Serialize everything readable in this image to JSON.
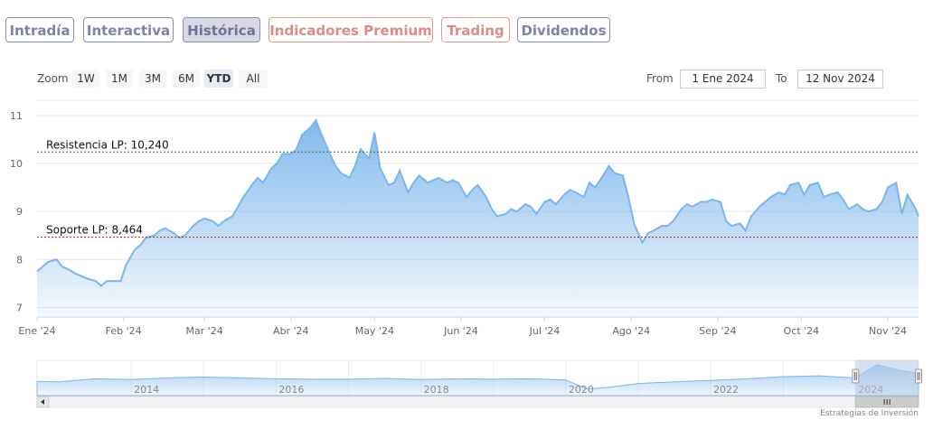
{
  "tabs": [
    {
      "label": "Intradía",
      "style": "normal"
    },
    {
      "label": "Interactiva",
      "style": "normal"
    },
    {
      "label": "Histórica",
      "style": "active"
    },
    {
      "label": "Indicadores Premium",
      "style": "premium"
    },
    {
      "label": "Trading",
      "style": "premium"
    },
    {
      "label": "Dividendos",
      "style": "normal"
    }
  ],
  "zoom": {
    "label": "Zoom",
    "buttons": [
      {
        "label": "1W",
        "selected": false
      },
      {
        "label": "1M",
        "selected": false
      },
      {
        "label": "3M",
        "selected": false
      },
      {
        "label": "6M",
        "selected": false
      },
      {
        "label": "YTD",
        "selected": true
      },
      {
        "label": "All",
        "selected": false
      }
    ]
  },
  "range": {
    "from_label": "From",
    "from_value": "1 Ene 2024",
    "to_label": "To",
    "to_value": "12 Nov 2024"
  },
  "credit": "Estrategias de Inversión",
  "colors": {
    "series_line": "#7cb5ec",
    "resistance": "#2e7d32",
    "support": "#b71c1c",
    "navigator_mask": "#b3c7e6"
  },
  "chart_data": {
    "type": "area",
    "title": "",
    "xlabel": "",
    "ylabel": "",
    "ylim": [
      6.8,
      11.3
    ],
    "grid": true,
    "yticks": [
      7,
      8,
      9,
      10,
      11
    ],
    "x_tick_labels": [
      "Ene '24",
      "Feb '24",
      "Mar '24",
      "Abr '24",
      "May '24",
      "Jun '24",
      "Jul '24",
      "Ago '24",
      "Sep '24",
      "Oct '24",
      "Nov '24"
    ],
    "x_tick_dates": [
      "2024-01-01",
      "2024-02-01",
      "2024-03-01",
      "2024-04-01",
      "2024-05-01",
      "2024-06-01",
      "2024-07-01",
      "2024-08-01",
      "2024-09-01",
      "2024-10-01",
      "2024-11-01"
    ],
    "x_range": [
      "2024-01-01",
      "2024-11-12"
    ],
    "series": [
      {
        "x": [
          "2024-01-01",
          "2024-01-03",
          "2024-01-05",
          "2024-01-08",
          "2024-01-10",
          "2024-01-12",
          "2024-01-15",
          "2024-01-17",
          "2024-01-19",
          "2024-01-22",
          "2024-01-24",
          "2024-01-26",
          "2024-01-29",
          "2024-01-31",
          "2024-02-02",
          "2024-02-05",
          "2024-02-07",
          "2024-02-09",
          "2024-02-12",
          "2024-02-14",
          "2024-02-16",
          "2024-02-19",
          "2024-02-21",
          "2024-02-23",
          "2024-02-26",
          "2024-02-28",
          "2024-03-01",
          "2024-03-04",
          "2024-03-06",
          "2024-03-08",
          "2024-03-11",
          "2024-03-13",
          "2024-03-15",
          "2024-03-18",
          "2024-03-20",
          "2024-03-22",
          "2024-03-25",
          "2024-03-27",
          "2024-03-29",
          "2024-04-01",
          "2024-04-03",
          "2024-04-05",
          "2024-04-08",
          "2024-04-10",
          "2024-04-12",
          "2024-04-15",
          "2024-04-17",
          "2024-04-19",
          "2024-04-22",
          "2024-04-24",
          "2024-04-26",
          "2024-04-29",
          "2024-05-01",
          "2024-05-03",
          "2024-05-06",
          "2024-05-08",
          "2024-05-10",
          "2024-05-13",
          "2024-05-15",
          "2024-05-17",
          "2024-05-20",
          "2024-05-22",
          "2024-05-24",
          "2024-05-27",
          "2024-05-29",
          "2024-05-31",
          "2024-06-03",
          "2024-06-05",
          "2024-06-07",
          "2024-06-10",
          "2024-06-12",
          "2024-06-14",
          "2024-06-17",
          "2024-06-19",
          "2024-06-21",
          "2024-06-24",
          "2024-06-26",
          "2024-06-28",
          "2024-07-01",
          "2024-07-03",
          "2024-07-05",
          "2024-07-08",
          "2024-07-10",
          "2024-07-12",
          "2024-07-15",
          "2024-07-17",
          "2024-07-19",
          "2024-07-22",
          "2024-07-24",
          "2024-07-26",
          "2024-07-29",
          "2024-07-31",
          "2024-08-02",
          "2024-08-05",
          "2024-08-07",
          "2024-08-09",
          "2024-08-12",
          "2024-08-14",
          "2024-08-16",
          "2024-08-19",
          "2024-08-21",
          "2024-08-23",
          "2024-08-26",
          "2024-08-28",
          "2024-08-30",
          "2024-09-02",
          "2024-09-04",
          "2024-09-06",
          "2024-09-09",
          "2024-09-11",
          "2024-09-13",
          "2024-09-16",
          "2024-09-18",
          "2024-09-20",
          "2024-09-23",
          "2024-09-25",
          "2024-09-27",
          "2024-09-30",
          "2024-10-02",
          "2024-10-04",
          "2024-10-07",
          "2024-10-09",
          "2024-10-11",
          "2024-10-14",
          "2024-10-16",
          "2024-10-18",
          "2024-10-21",
          "2024-10-23",
          "2024-10-25",
          "2024-10-28",
          "2024-10-30",
          "2024-11-01",
          "2024-11-04",
          "2024-11-06",
          "2024-11-08",
          "2024-11-11",
          "2024-11-12"
        ],
        "values": [
          7.75,
          7.85,
          7.95,
          8.0,
          7.85,
          7.8,
          7.7,
          7.65,
          7.6,
          7.55,
          7.45,
          7.55,
          7.55,
          7.55,
          7.9,
          8.2,
          8.3,
          8.45,
          8.5,
          8.6,
          8.65,
          8.55,
          8.45,
          8.5,
          8.7,
          8.8,
          8.85,
          8.8,
          8.7,
          8.8,
          8.9,
          9.1,
          9.3,
          9.55,
          9.7,
          9.6,
          9.9,
          10.0,
          10.2,
          10.2,
          10.3,
          10.6,
          10.75,
          10.9,
          10.6,
          10.2,
          9.95,
          9.8,
          9.7,
          9.95,
          10.3,
          10.1,
          10.65,
          9.9,
          9.55,
          9.6,
          9.85,
          9.4,
          9.6,
          9.75,
          9.6,
          9.65,
          9.7,
          9.6,
          9.65,
          9.6,
          9.3,
          9.45,
          9.55,
          9.3,
          9.05,
          8.9,
          8.95,
          9.05,
          9.0,
          9.15,
          9.1,
          8.95,
          9.2,
          9.25,
          9.15,
          9.35,
          9.45,
          9.4,
          9.3,
          9.6,
          9.5,
          9.75,
          9.95,
          9.8,
          9.75,
          9.3,
          8.75,
          8.35,
          8.55,
          8.6,
          8.7,
          8.7,
          8.8,
          9.05,
          9.15,
          9.1,
          9.2,
          9.2,
          9.25,
          9.2,
          8.8,
          8.7,
          8.75,
          8.6,
          8.9,
          9.1,
          9.2,
          9.3,
          9.4,
          9.35,
          9.55,
          9.6,
          9.35,
          9.55,
          9.6,
          9.3,
          9.35,
          9.4,
          9.25,
          9.05,
          9.15,
          9.05,
          9.0,
          9.05,
          9.2,
          9.5,
          9.6,
          8.95,
          9.35,
          9.05,
          8.9
        ]
      }
    ],
    "reference_lines": [
      {
        "label": "Resistencia LP: 10,240",
        "value": 10.24,
        "style": "dotted",
        "color": "#2e7d32"
      },
      {
        "label": "Soporte LP: 8,464",
        "value": 8.464,
        "style": "dotted",
        "color": "#b71c1c"
      }
    ],
    "navigator": {
      "year_labels": [
        "2014",
        "2016",
        "2018",
        "2020",
        "2022",
        "2024"
      ],
      "year_range": [
        2012.7,
        2024.87
      ],
      "selected_range": [
        2024.0,
        2024.87
      ],
      "years": [
        2012.7,
        2013.0,
        2013.5,
        2014.0,
        2014.5,
        2015.0,
        2015.5,
        2016.0,
        2016.5,
        2017.0,
        2017.5,
        2018.0,
        2018.5,
        2019.0,
        2019.5,
        2020.0,
        2020.3,
        2020.6,
        2021.0,
        2021.5,
        2022.0,
        2022.5,
        2023.0,
        2023.5,
        2024.0,
        2024.3,
        2024.6,
        2024.87
      ],
      "values": [
        7.0,
        6.9,
        7.6,
        7.4,
        7.8,
        8.0,
        7.8,
        7.6,
        7.5,
        7.5,
        7.7,
        7.4,
        7.6,
        7.5,
        7.6,
        7.3,
        5.2,
        5.6,
        6.5,
        6.9,
        7.2,
        7.6,
        8.1,
        8.3,
        7.8,
        10.9,
        9.6,
        8.9
      ]
    }
  }
}
